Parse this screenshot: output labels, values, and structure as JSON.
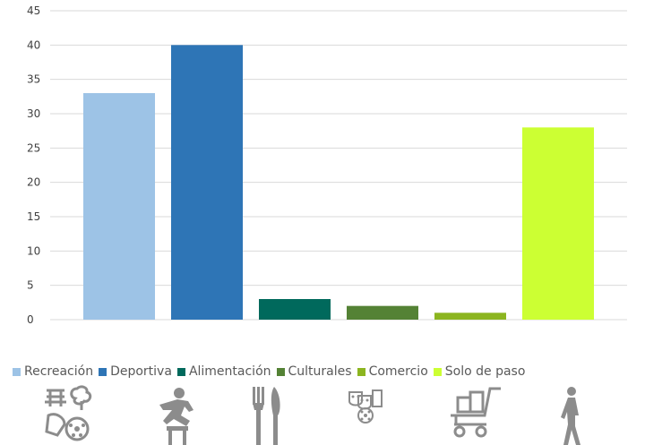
{
  "chart_data": {
    "type": "bar",
    "categories": [
      "Recreación",
      "Deportiva",
      "Alimentación",
      "Culturales",
      "Comercio",
      "Solo de paso"
    ],
    "values": [
      33,
      40,
      3,
      2,
      1,
      28
    ],
    "colors": [
      "#9dc3e6",
      "#2e75b6",
      "#00695c",
      "#548235",
      "#8cb520",
      "#ccff33"
    ],
    "ylim": [
      0,
      45
    ],
    "yticks": [
      0,
      5,
      10,
      15,
      20,
      25,
      30,
      35,
      40,
      45
    ],
    "grid": true,
    "legend": "bottom",
    "title": "",
    "xlabel": "",
    "ylabel": ""
  },
  "legend": {
    "items": [
      {
        "label": "Recreación",
        "color": "#9dc3e6"
      },
      {
        "label": "Deportiva",
        "color": "#2e75b6"
      },
      {
        "label": "Alimentación",
        "color": "#00695c"
      },
      {
        "label": "Culturales",
        "color": "#548235"
      },
      {
        "label": "Comercio",
        "color": "#8cb520"
      },
      {
        "label": "Solo de paso",
        "color": "#ccff33"
      }
    ]
  },
  "icons": [
    {
      "name": "recreation-icon",
      "color": "#8c8c8c"
    },
    {
      "name": "sport-hurdle-icon",
      "color": "#8c8c8c"
    },
    {
      "name": "fork-knife-icon",
      "color": "#8c8c8c"
    },
    {
      "name": "theater-masks-icon",
      "color": "#8c8c8c"
    },
    {
      "name": "shopping-cart-icon",
      "color": "#8c8c8c"
    },
    {
      "name": "walking-person-icon",
      "color": "#8c8c8c"
    }
  ]
}
